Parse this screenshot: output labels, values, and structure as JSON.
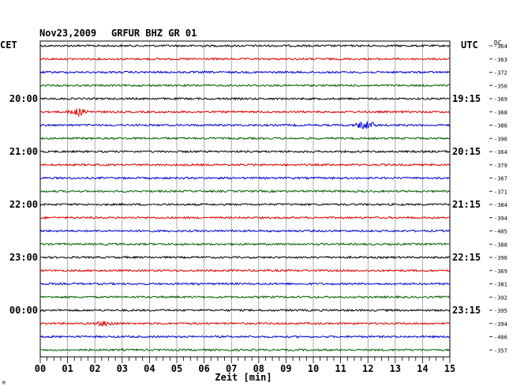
{
  "header": {
    "date": "Nov23,2009",
    "station": "GRFUR BHZ GR 01",
    "left_tz": "CET",
    "right_tz": "UTC",
    "dc_label": "DC"
  },
  "chart_data": {
    "type": "line",
    "xlabel": "Zeit [min]",
    "x_ticks": [
      "00",
      "01",
      "02",
      "03",
      "04",
      "05",
      "06",
      "07",
      "08",
      "09",
      "10",
      "11",
      "12",
      "13",
      "14",
      "15"
    ],
    "xlim": [
      0,
      15
    ],
    "cet_labels": [
      {
        "row": 4,
        "text": "20:00"
      },
      {
        "row": 8,
        "text": "21:00"
      },
      {
        "row": 12,
        "text": "22:00"
      },
      {
        "row": 16,
        "text": "23:00"
      },
      {
        "row": 20,
        "text": "00:00"
      }
    ],
    "utc_labels": [
      {
        "row": 4,
        "text": "19:15"
      },
      {
        "row": 8,
        "text": "20:15"
      },
      {
        "row": 12,
        "text": "21:15"
      },
      {
        "row": 16,
        "text": "22:15"
      },
      {
        "row": 20,
        "text": "23:15"
      }
    ],
    "dc_offsets": [
      "-364",
      "-363",
      "-372",
      "-350",
      "-369",
      "-368",
      "-386",
      "-398",
      "-364",
      "-379",
      "-367",
      "-371",
      "-384",
      "-394",
      "-405",
      "-388",
      "-396",
      "-369",
      "-381",
      "-392",
      "-395",
      "-394",
      "-406",
      "-357"
    ],
    "trace_colors": [
      "#000000",
      "#e00000",
      "#0000d0",
      "#006000"
    ],
    "events": [
      {
        "row": 5,
        "minute": 1.4,
        "amplitude": 4
      },
      {
        "row": 6,
        "minute": 11.9,
        "amplitude": 5
      },
      {
        "row": 21,
        "minute": 2.4,
        "amplitude": 3
      }
    ]
  },
  "footer": {
    "corner_mark": "M"
  }
}
